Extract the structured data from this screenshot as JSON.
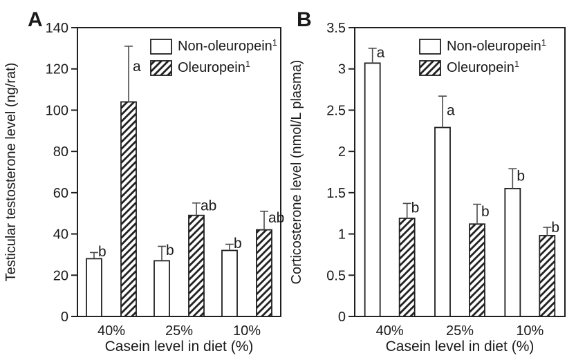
{
  "figure": {
    "background": "#ffffff",
    "ink_color": "#1f1f1f",
    "panel_labels": [
      "A",
      "B"
    ]
  },
  "chart_data": [
    {
      "type": "bar",
      "panel_label": "A",
      "ylabel": "Testicular testosterone level (ng/rat)",
      "xlabel": "Casein level in diet (%)",
      "categories": [
        "40%",
        "25%",
        "10%"
      ],
      "ylim": [
        0,
        140
      ],
      "yticks": [
        "0",
        "20",
        "40",
        "60",
        "80",
        "100",
        "120",
        "140"
      ],
      "grid": false,
      "legend_position": "top-right-inside",
      "error_bars": "upper-only",
      "series": [
        {
          "name": "Non-oleuropein",
          "sup": "1",
          "fill": "white",
          "values": [
            28,
            27,
            32
          ],
          "errors_plus": [
            3,
            7,
            3
          ],
          "sig_letters": [
            "b",
            "b",
            "b"
          ]
        },
        {
          "name": "Oleuropein",
          "sup": "1",
          "fill": "hatched",
          "values": [
            104,
            49,
            42
          ],
          "errors_plus": [
            27,
            6,
            9
          ],
          "sig_letters": [
            "a",
            "ab",
            "ab"
          ]
        }
      ]
    },
    {
      "type": "bar",
      "panel_label": "B",
      "ylabel": "Corticosterone level (nmol/L plasma)",
      "xlabel": "Casein level in diet (%)",
      "categories": [
        "40%",
        "25%",
        "10%"
      ],
      "ylim": [
        0,
        3.5
      ],
      "yticks": [
        "0",
        "0.5",
        "1",
        "1.5",
        "2",
        "2.5",
        "3",
        "3.5"
      ],
      "grid": false,
      "legend_position": "top-right-inside",
      "error_bars": "upper-only",
      "series": [
        {
          "name": "Non-oleuropein",
          "sup": "1",
          "fill": "white",
          "values": [
            3.07,
            2.29,
            1.55
          ],
          "errors_plus": [
            0.18,
            0.38,
            0.24
          ],
          "sig_letters": [
            "a",
            "a",
            "b"
          ]
        },
        {
          "name": "Oleuropein",
          "sup": "1",
          "fill": "hatched",
          "values": [
            1.19,
            1.12,
            0.98
          ],
          "errors_plus": [
            0.18,
            0.24,
            0.1
          ],
          "sig_letters": [
            "b",
            "b",
            "b"
          ]
        }
      ]
    }
  ]
}
